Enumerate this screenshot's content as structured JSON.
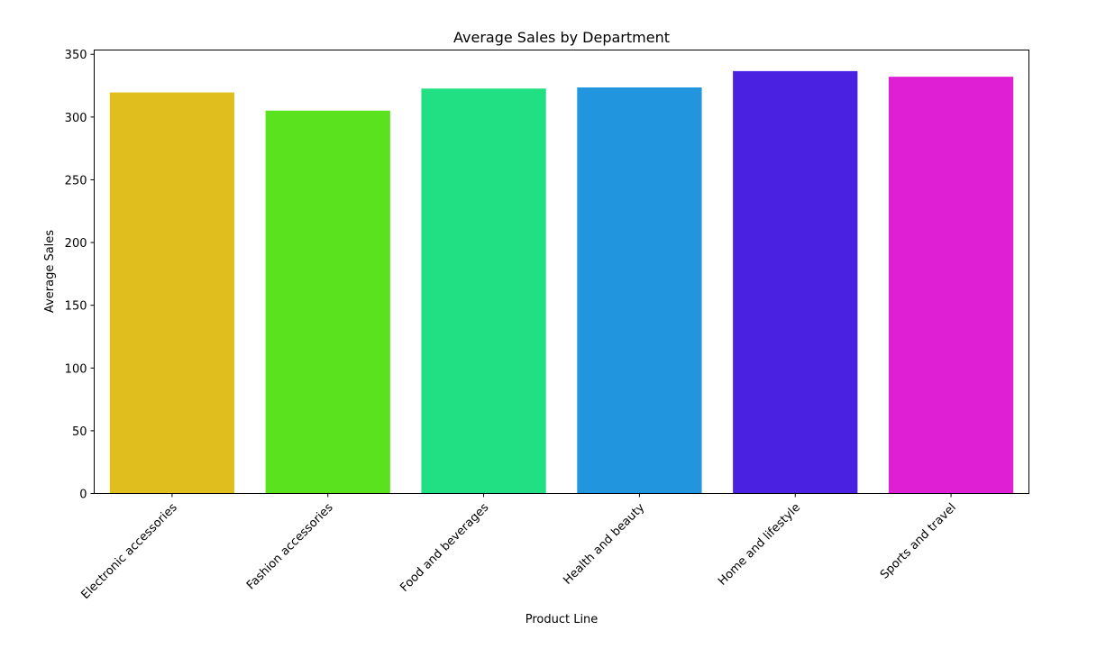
{
  "chart_data": {
    "type": "bar",
    "title": "Average Sales by Department",
    "xlabel": "Product Line",
    "ylabel": "Average Sales",
    "categories": [
      "Electronic accessories",
      "Fashion accessories",
      "Food and beverages",
      "Health and beauty",
      "Home and lifestyle",
      "Sports and travel"
    ],
    "values": [
      319.6,
      305.1,
      322.7,
      323.6,
      336.6,
      332.1
    ],
    "colors": [
      "#dfbe1e",
      "#5be21e",
      "#21e083",
      "#2196de",
      "#4b21e1",
      "#df1fd3"
    ],
    "ylim": [
      0,
      353.4
    ],
    "yticks": [
      0,
      50,
      100,
      150,
      200,
      250,
      300,
      350
    ],
    "grid": false,
    "legend": "none"
  }
}
